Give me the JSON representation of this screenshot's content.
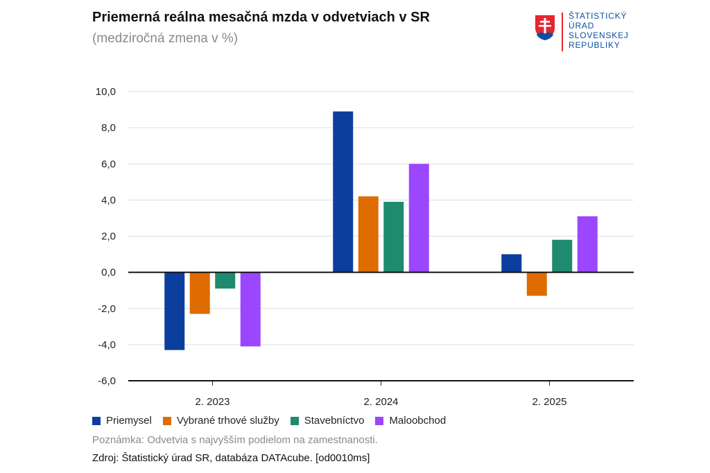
{
  "header": {
    "title": "Priemerná reálna mesačná mzda v odvetviach v SR",
    "subtitle": "(medziročná zmena v %)"
  },
  "logo": {
    "lines": [
      "ŠTATISTICKÝ",
      "ÚRAD",
      "SLOVENSKEJ",
      "REPUBLIKY"
    ],
    "icon": "slovak-coat-of-arms-icon"
  },
  "chart_data": {
    "type": "bar",
    "title": "Priemerná reálna mesačná mzda v odvetviach v SR",
    "subtitle": "(medziročná zmena v %)",
    "categories": [
      "2. 2023",
      "2. 2024",
      "2. 2025"
    ],
    "series": [
      {
        "name": "Priemysel",
        "color": "#0c3e9e",
        "values": [
          -4.3,
          8.9,
          1.0
        ]
      },
      {
        "name": "Vybrané trhové služby",
        "color": "#df6c00",
        "values": [
          -2.3,
          4.2,
          -1.3
        ]
      },
      {
        "name": "Stavebníctvo",
        "color": "#1e8a6e",
        "values": [
          -0.9,
          3.9,
          1.8
        ]
      },
      {
        "name": "Maloobchod",
        "color": "#9b46ff",
        "values": [
          -4.1,
          6.0,
          3.1
        ]
      }
    ],
    "ylim": [
      -6,
      10
    ],
    "yticks": [
      "-6,0",
      "-4,0",
      "-2,0",
      "0,0",
      "2,0",
      "4,0",
      "6,0",
      "8,0",
      "10,0"
    ],
    "ytick_values": [
      -6,
      -4,
      -2,
      0,
      2,
      4,
      6,
      8,
      10
    ],
    "grid": true,
    "legend_position": "bottom-left"
  },
  "footer": {
    "note": "Poznámka: Odvetvia s najvyšším podielom na zamestnanosti.",
    "source": "Zdroj: Štatistický úrad SR, databáza DATAcube. [od0010ms]"
  }
}
